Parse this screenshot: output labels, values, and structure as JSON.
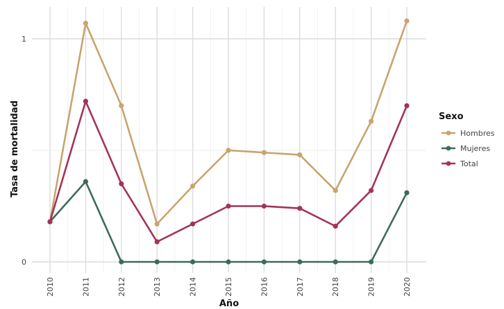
{
  "chart_data": {
    "type": "line",
    "xlabel": "Año",
    "ylabel": "Tasa de mortalidad",
    "x": [
      2010,
      2011,
      2012,
      2013,
      2014,
      2015,
      2016,
      2017,
      2018,
      2019,
      2020
    ],
    "ylim": [
      0,
      1.1
    ],
    "yticks": [
      0,
      1
    ],
    "grid": true,
    "legend": {
      "title": "Sexo",
      "position": "right"
    },
    "series": [
      {
        "name": "Hombres",
        "color": "#c8a46e",
        "values": [
          0.18,
          1.07,
          0.7,
          0.17,
          0.34,
          0.5,
          0.49,
          0.48,
          0.32,
          0.63,
          1.08
        ]
      },
      {
        "name": "Mujeres",
        "color": "#3d6b58",
        "values": [
          0.18,
          0.36,
          0.0,
          0.0,
          0.0,
          0.0,
          0.0,
          0.0,
          0.0,
          0.0,
          0.31
        ]
      },
      {
        "name": "Total",
        "color": "#a33357",
        "values": [
          0.18,
          0.72,
          0.35,
          0.09,
          0.17,
          0.25,
          0.25,
          0.24,
          0.16,
          0.32,
          0.7
        ]
      }
    ]
  }
}
